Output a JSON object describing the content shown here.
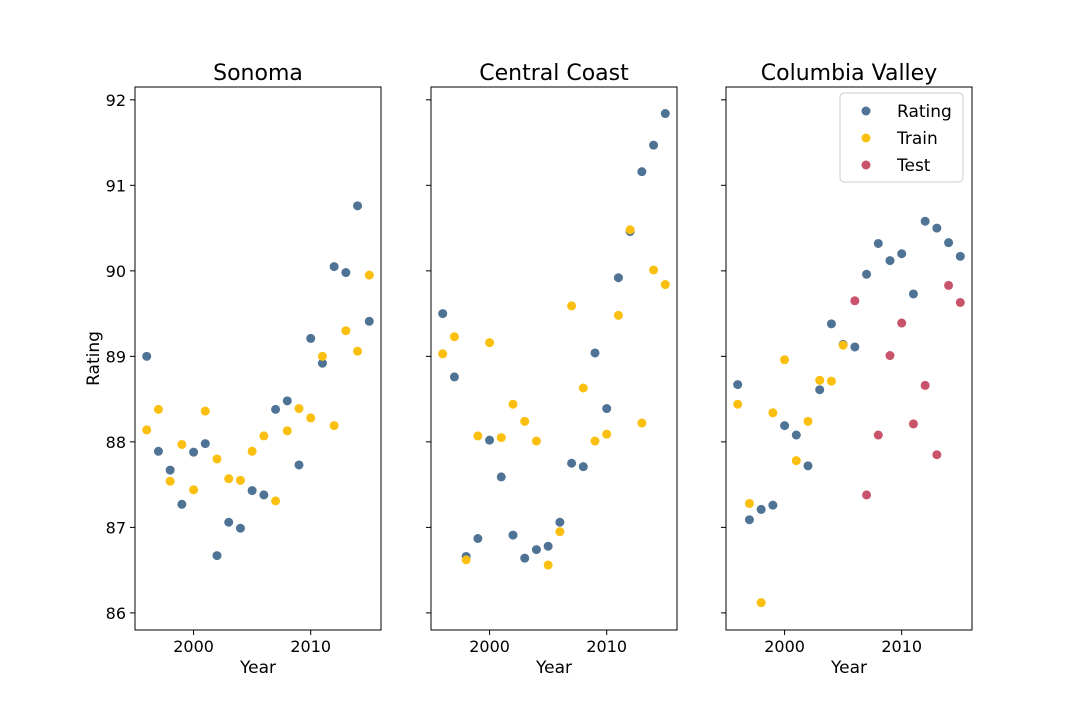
{
  "chart_data": {
    "type": "scatter",
    "ylabel": "Rating",
    "ylim": [
      85.8,
      92.15
    ],
    "yticks": [
      "86",
      "87",
      "88",
      "89",
      "90",
      "91",
      "92"
    ],
    "xlim": [
      1995.0,
      2016.0
    ],
    "xticks": [
      "2000",
      "2010"
    ],
    "legend_position": "top-right",
    "colors": {
      "Rating": "#4f7394",
      "Train": "#fbbf0f",
      "Test": "#c9536a"
    },
    "panels": [
      {
        "title": "Sonoma",
        "xlabel": "Year",
        "series": [
          {
            "name": "Rating",
            "x": [
              1996,
              1997,
              1998,
              1999,
              2000,
              2001,
              2002,
              2003,
              2004,
              2005,
              2006,
              2007,
              2008,
              2009,
              2010,
              2011,
              2012,
              2013,
              2014,
              2015
            ],
            "y": [
              89.0,
              87.89,
              87.67,
              87.27,
              87.88,
              87.98,
              86.67,
              87.06,
              86.99,
              87.43,
              87.38,
              88.38,
              88.48,
              87.73,
              89.21,
              88.92,
              90.05,
              89.98,
              90.76,
              89.41
            ]
          },
          {
            "name": "Train",
            "x": [
              1996,
              1997,
              1998,
              1999,
              2000,
              2001,
              2002,
              2003,
              2004,
              2005,
              2006,
              2007,
              2008,
              2009,
              2010,
              2011,
              2012,
              2013,
              2014,
              2015
            ],
            "y": [
              88.14,
              88.38,
              87.54,
              87.97,
              87.44,
              88.36,
              87.8,
              87.57,
              87.55,
              87.89,
              88.07,
              87.31,
              88.13,
              88.39,
              88.28,
              89.0,
              88.19,
              89.3,
              89.06,
              89.95
            ]
          }
        ]
      },
      {
        "title": "Central Coast",
        "xlabel": "Year",
        "series": [
          {
            "name": "Rating",
            "x": [
              1996,
              1997,
              1998,
              1999,
              2000,
              2001,
              2002,
              2003,
              2004,
              2005,
              2006,
              2007,
              2008,
              2009,
              2010,
              2011,
              2012,
              2013,
              2014,
              2015
            ],
            "y": [
              89.5,
              88.76,
              86.66,
              86.87,
              88.02,
              87.59,
              86.91,
              86.64,
              86.74,
              86.78,
              87.06,
              87.75,
              87.71,
              89.04,
              88.39,
              89.92,
              90.46,
              91.16,
              91.47,
              91.84
            ]
          },
          {
            "name": "Train",
            "x": [
              1996,
              1997,
              1998,
              1999,
              2000,
              2001,
              2002,
              2003,
              2004,
              2005,
              2006,
              2007,
              2008,
              2009,
              2010,
              2011,
              2012,
              2013,
              2014,
              2015
            ],
            "y": [
              89.03,
              89.23,
              86.62,
              88.07,
              89.16,
              88.05,
              88.44,
              88.24,
              88.01,
              86.56,
              86.95,
              89.59,
              88.63,
              88.01,
              88.09,
              89.48,
              90.48,
              88.22,
              90.01,
              89.84
            ]
          }
        ]
      },
      {
        "title": "Columbia Valley",
        "xlabel": "Year",
        "series": [
          {
            "name": "Rating",
            "x": [
              1996,
              1997,
              1998,
              1999,
              2000,
              2001,
              2002,
              2003,
              2004,
              2005,
              2006,
              2007,
              2008,
              2009,
              2010,
              2011,
              2012,
              2013,
              2014,
              2015
            ],
            "y": [
              88.67,
              87.09,
              87.21,
              87.26,
              88.19,
              88.08,
              87.72,
              88.61,
              89.38,
              89.14,
              89.11,
              89.96,
              90.32,
              90.12,
              90.2,
              89.73,
              90.58,
              90.5,
              90.33,
              90.17
            ]
          },
          {
            "name": "Train",
            "x": [
              1996,
              1997,
              1998,
              1999,
              2000,
              2001,
              2002,
              2003,
              2004,
              2005
            ],
            "y": [
              88.44,
              87.28,
              86.12,
              88.34,
              88.96,
              87.78,
              88.24,
              88.72,
              88.71,
              89.13
            ]
          },
          {
            "name": "Test",
            "x": [
              2006,
              2007,
              2008,
              2009,
              2010,
              2011,
              2012,
              2013,
              2014,
              2015
            ],
            "y": [
              89.65,
              87.38,
              88.08,
              89.01,
              89.39,
              88.21,
              88.66,
              87.85,
              89.83,
              89.63
            ]
          }
        ]
      }
    ]
  }
}
